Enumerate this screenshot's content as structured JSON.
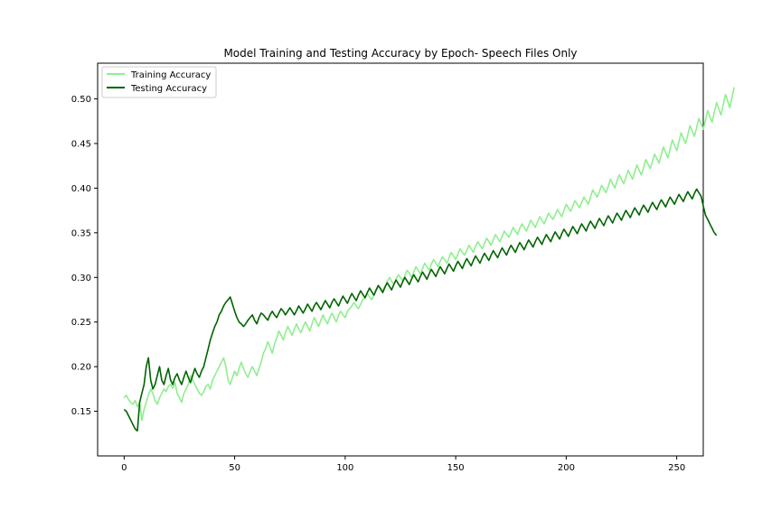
{
  "chart_data": {
    "type": "line",
    "title": "Model Training and Testing Accuracy by Epoch- Speech Files Only",
    "xlabel": "",
    "ylabel": "",
    "xlim": [
      -12,
      262
    ],
    "ylim": [
      0.1,
      0.54
    ],
    "xticks": [
      0,
      50,
      100,
      150,
      200,
      250
    ],
    "yticks": [
      0.15,
      0.2,
      0.25,
      0.3,
      0.35,
      0.4,
      0.45,
      0.5
    ],
    "ytick_labels": [
      "0.15",
      "0.20",
      "0.25",
      "0.30",
      "0.35",
      "0.40",
      "0.45",
      "0.50"
    ],
    "grid": false,
    "legend_position": "top-left",
    "x_step": 1,
    "series": [
      {
        "name": "Training Accuracy",
        "color": "#90ee90",
        "values": [
          0.165,
          0.168,
          0.163,
          0.16,
          0.158,
          0.162,
          0.155,
          0.16,
          0.14,
          0.152,
          0.16,
          0.168,
          0.175,
          0.17,
          0.162,
          0.158,
          0.165,
          0.17,
          0.175,
          0.172,
          0.178,
          0.18,
          0.176,
          0.182,
          0.17,
          0.165,
          0.16,
          0.17,
          0.175,
          0.18,
          0.19,
          0.185,
          0.18,
          0.175,
          0.17,
          0.168,
          0.172,
          0.178,
          0.18,
          0.175,
          0.185,
          0.19,
          0.195,
          0.2,
          0.205,
          0.21,
          0.2,
          0.185,
          0.18,
          0.188,
          0.195,
          0.19,
          0.198,
          0.205,
          0.198,
          0.192,
          0.188,
          0.195,
          0.2,
          0.195,
          0.19,
          0.198,
          0.205,
          0.215,
          0.22,
          0.228,
          0.222,
          0.215,
          0.225,
          0.232,
          0.24,
          0.235,
          0.23,
          0.238,
          0.245,
          0.24,
          0.235,
          0.242,
          0.248,
          0.242,
          0.238,
          0.245,
          0.25,
          0.245,
          0.24,
          0.248,
          0.255,
          0.25,
          0.245,
          0.252,
          0.258,
          0.252,
          0.248,
          0.255,
          0.26,
          0.255,
          0.25,
          0.258,
          0.262,
          0.258,
          0.255,
          0.262,
          0.265,
          0.268,
          0.272,
          0.268,
          0.265,
          0.27,
          0.275,
          0.278,
          0.282,
          0.278,
          0.275,
          0.28,
          0.285,
          0.29,
          0.288,
          0.285,
          0.29,
          0.295,
          0.3,
          0.296,
          0.292,
          0.298,
          0.303,
          0.3,
          0.296,
          0.302,
          0.308,
          0.305,
          0.3,
          0.306,
          0.312,
          0.308,
          0.304,
          0.31,
          0.316,
          0.312,
          0.308,
          0.315,
          0.32,
          0.316,
          0.312,
          0.318,
          0.323,
          0.32,
          0.316,
          0.322,
          0.328,
          0.324,
          0.32,
          0.326,
          0.332,
          0.328,
          0.325,
          0.33,
          0.336,
          0.332,
          0.328,
          0.335,
          0.34,
          0.336,
          0.332,
          0.338,
          0.344,
          0.34,
          0.336,
          0.342,
          0.348,
          0.344,
          0.34,
          0.346,
          0.352,
          0.348,
          0.345,
          0.35,
          0.356,
          0.352,
          0.348,
          0.355,
          0.36,
          0.356,
          0.352,
          0.358,
          0.364,
          0.36,
          0.356,
          0.362,
          0.368,
          0.364,
          0.36,
          0.366,
          0.372,
          0.368,
          0.365,
          0.37,
          0.376,
          0.372,
          0.368,
          0.375,
          0.382,
          0.378,
          0.374,
          0.38,
          0.386,
          0.382,
          0.378,
          0.384,
          0.39,
          0.386,
          0.382,
          0.39,
          0.398,
          0.394,
          0.39,
          0.396,
          0.403,
          0.399,
          0.395,
          0.402,
          0.41,
          0.405,
          0.4,
          0.408,
          0.415,
          0.41,
          0.405,
          0.412,
          0.42,
          0.415,
          0.41,
          0.418,
          0.426,
          0.42,
          0.415,
          0.423,
          0.432,
          0.427,
          0.422,
          0.43,
          0.438,
          0.433,
          0.428,
          0.437,
          0.446,
          0.44,
          0.434,
          0.444,
          0.454,
          0.448,
          0.442,
          0.452,
          0.462,
          0.456,
          0.45,
          0.46,
          0.47,
          0.464,
          0.458,
          0.468,
          0.478,
          0.472,
          0.466,
          0.476,
          0.487,
          0.48,
          0.474,
          0.485,
          0.496,
          0.489,
          0.482,
          0.493,
          0.505,
          0.498,
          0.49,
          0.502,
          0.513
        ]
      },
      {
        "name": "Testing Accuracy",
        "color": "#006400",
        "values": [
          0.152,
          0.15,
          0.145,
          0.14,
          0.135,
          0.13,
          0.128,
          0.16,
          0.17,
          0.18,
          0.2,
          0.21,
          0.185,
          0.175,
          0.18,
          0.19,
          0.2,
          0.185,
          0.18,
          0.19,
          0.198,
          0.185,
          0.18,
          0.188,
          0.192,
          0.185,
          0.18,
          0.188,
          0.195,
          0.188,
          0.182,
          0.19,
          0.198,
          0.192,
          0.188,
          0.195,
          0.2,
          0.21,
          0.22,
          0.23,
          0.238,
          0.245,
          0.25,
          0.258,
          0.262,
          0.268,
          0.272,
          0.275,
          0.278,
          0.27,
          0.262,
          0.255,
          0.25,
          0.248,
          0.245,
          0.248,
          0.252,
          0.255,
          0.258,
          0.252,
          0.248,
          0.255,
          0.26,
          0.258,
          0.255,
          0.252,
          0.258,
          0.262,
          0.258,
          0.255,
          0.26,
          0.265,
          0.262,
          0.258,
          0.262,
          0.266,
          0.262,
          0.258,
          0.263,
          0.268,
          0.264,
          0.26,
          0.265,
          0.27,
          0.266,
          0.262,
          0.268,
          0.272,
          0.268,
          0.264,
          0.269,
          0.274,
          0.27,
          0.266,
          0.272,
          0.276,
          0.272,
          0.268,
          0.274,
          0.279,
          0.275,
          0.271,
          0.277,
          0.282,
          0.278,
          0.274,
          0.28,
          0.285,
          0.281,
          0.277,
          0.283,
          0.288,
          0.284,
          0.28,
          0.286,
          0.291,
          0.287,
          0.283,
          0.289,
          0.294,
          0.29,
          0.286,
          0.292,
          0.297,
          0.293,
          0.289,
          0.295,
          0.3,
          0.296,
          0.292,
          0.298,
          0.303,
          0.299,
          0.295,
          0.301,
          0.306,
          0.302,
          0.298,
          0.304,
          0.309,
          0.305,
          0.301,
          0.307,
          0.312,
          0.308,
          0.304,
          0.31,
          0.315,
          0.311,
          0.307,
          0.313,
          0.318,
          0.314,
          0.31,
          0.316,
          0.321,
          0.317,
          0.313,
          0.319,
          0.324,
          0.32,
          0.316,
          0.322,
          0.327,
          0.323,
          0.319,
          0.325,
          0.33,
          0.326,
          0.322,
          0.328,
          0.333,
          0.329,
          0.325,
          0.331,
          0.336,
          0.332,
          0.328,
          0.334,
          0.339,
          0.335,
          0.331,
          0.337,
          0.342,
          0.338,
          0.334,
          0.34,
          0.345,
          0.341,
          0.337,
          0.343,
          0.348,
          0.344,
          0.34,
          0.346,
          0.351,
          0.347,
          0.343,
          0.349,
          0.354,
          0.35,
          0.346,
          0.352,
          0.357,
          0.353,
          0.349,
          0.355,
          0.36,
          0.356,
          0.352,
          0.358,
          0.363,
          0.359,
          0.355,
          0.361,
          0.366,
          0.362,
          0.358,
          0.364,
          0.369,
          0.365,
          0.361,
          0.367,
          0.372,
          0.368,
          0.364,
          0.37,
          0.375,
          0.371,
          0.367,
          0.373,
          0.378,
          0.374,
          0.37,
          0.376,
          0.381,
          0.377,
          0.373,
          0.379,
          0.384,
          0.38,
          0.376,
          0.382,
          0.387,
          0.383,
          0.379,
          0.385,
          0.39,
          0.386,
          0.382,
          0.388,
          0.393,
          0.389,
          0.385,
          0.391,
          0.396,
          0.392,
          0.388,
          0.394,
          0.399,
          0.395,
          0.391,
          0.38,
          0.37,
          0.365,
          0.36,
          0.355,
          0.35,
          0.347
        ]
      }
    ]
  }
}
